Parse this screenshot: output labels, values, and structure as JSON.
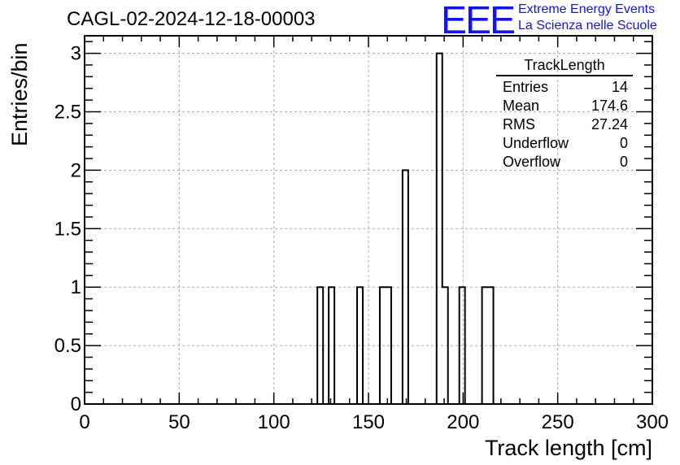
{
  "chart_data": {
    "type": "bar",
    "title": "CAGL-02-2024-12-18-00003",
    "xlabel": "Track length [cm]",
    "ylabel": "Entries/bin",
    "xlim": [
      0,
      300
    ],
    "ylim": [
      0,
      3
    ],
    "xticks": [
      "0",
      "50",
      "100",
      "150",
      "200",
      "250",
      "300"
    ],
    "yticks": [
      "0",
      "0.5",
      "1",
      "1.5",
      "2",
      "2.5",
      "3"
    ],
    "grid": true,
    "bin_width": 3,
    "bins": [
      {
        "x0": 123,
        "value": 1
      },
      {
        "x0": 129,
        "value": 1
      },
      {
        "x0": 144,
        "value": 1
      },
      {
        "x0": 156,
        "value": 1
      },
      {
        "x0": 159,
        "value": 1
      },
      {
        "x0": 168,
        "value": 2
      },
      {
        "x0": 186,
        "value": 3
      },
      {
        "x0": 189,
        "value": 1
      },
      {
        "x0": 198,
        "value": 1
      },
      {
        "x0": 210,
        "value": 1
      },
      {
        "x0": 213,
        "value": 1
      }
    ],
    "stats": {
      "name": "TrackLength",
      "rows": [
        {
          "label": "Entries",
          "value": "14"
        },
        {
          "label": "Mean",
          "value": "174.6"
        },
        {
          "label": "RMS",
          "value": "27.24"
        },
        {
          "label": "Underflow",
          "value": "0"
        },
        {
          "label": "Overflow",
          "value": "0"
        }
      ]
    }
  },
  "logo": {
    "mark": "EEE",
    "line1": "Extreme Energy Events",
    "line2": "La Scienza nelle Scuole"
  },
  "colors": {
    "logo": "#1515e0",
    "grid": "#aaaaaa",
    "line": "#000000"
  }
}
